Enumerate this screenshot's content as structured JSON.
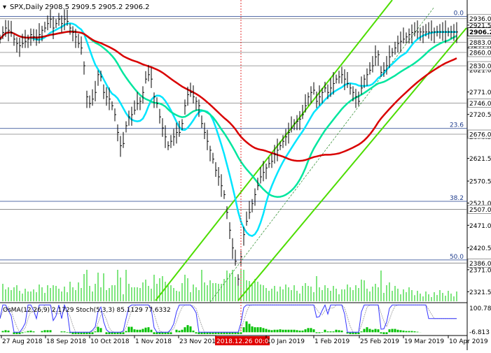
{
  "chart_data": {
    "type": "line",
    "instrument": "SPX,Daily",
    "ohlc_readout": "2908.5 2909.5 2905.2 2906.2",
    "current_price": 2906.2,
    "ylim": [
      2300,
      2956
    ],
    "price_ticks": [
      2921.5,
      2871.0,
      2821.0,
      2771.0,
      2720.5,
      2670.5,
      2621.5,
      2570.5,
      2521.0,
      2471.0,
      2420.5,
      2371.0,
      2321.5
    ],
    "level_labels": [
      2936.0,
      2883.0,
      2860.0,
      2830.0,
      2746.0,
      2676.0,
      2507.0,
      2386.0
    ],
    "fib_levels": [
      {
        "label": "0.0",
        "value": 2941
      },
      {
        "label": "23.6",
        "value": 2689
      },
      {
        "label": "38.2",
        "value": 2525
      },
      {
        "label": "50.0",
        "value": 2393
      }
    ],
    "horizontal_lines": [
      2936.0,
      2883.0,
      2860.0,
      2830.0,
      2746.0,
      2676.0,
      2507.0,
      2386.0
    ],
    "x_labels": [
      "27 Aug 2018",
      "18 Sep 2018",
      "10 Oct 2018",
      "1 Nov 2018",
      "23 Nov 201",
      "2018.12.26 00:00",
      "10 Jan 2019",
      "1 Feb 2019",
      "25 Feb 2019",
      "19 Mar 2019",
      "10 Apr 2019"
    ],
    "highlighted_date": "2018.12.26 00:00",
    "price_series": {
      "x": [
        0,
        4,
        8,
        12,
        16,
        20,
        24,
        28,
        32,
        36,
        40,
        44,
        48,
        52,
        56,
        60,
        64,
        68,
        72,
        76,
        80,
        84,
        88,
        92,
        96,
        100,
        104,
        108,
        112,
        116,
        120,
        124,
        128,
        132,
        136,
        140,
        144,
        148,
        152,
        156,
        160,
        164,
        168,
        172,
        176,
        180,
        184,
        188,
        192,
        196,
        200,
        204,
        208,
        212,
        216,
        220,
        224,
        228,
        232,
        236,
        240,
        244,
        248,
        252,
        256,
        260,
        264,
        268,
        272,
        276,
        280,
        284,
        288,
        292,
        296,
        300,
        304,
        308,
        312,
        316,
        320,
        324,
        328,
        332,
        336,
        340,
        344,
        348,
        352,
        356,
        360,
        364,
        368,
        372,
        376,
        380,
        384,
        388,
        392,
        396,
        400,
        404,
        408,
        412,
        416,
        420,
        424,
        428,
        432,
        436,
        440,
        444,
        448,
        452,
        456,
        460,
        464,
        468,
        472,
        476,
        480,
        484,
        488,
        492,
        496,
        500,
        504,
        508,
        512,
        516,
        520,
        524,
        528,
        532,
        536,
        540,
        544,
        548,
        552,
        556,
        560,
        564,
        568,
        572,
        576,
        580,
        584,
        588,
        592,
        596,
        600,
        604,
        608,
        612,
        616,
        620,
        624,
        628,
        632,
        636,
        640,
        644,
        648,
        652
      ],
      "values": [
        2890,
        2905,
        2915,
        2910,
        2905,
        2890,
        2880,
        2875,
        2880,
        2885,
        2890,
        2900,
        2895,
        2890,
        2900,
        2910,
        2915,
        2925,
        2935,
        2915,
        2925,
        2935,
        2925,
        2935,
        2930,
        2915,
        2905,
        2895,
        2880,
        2870,
        2830,
        2760,
        2745,
        2755,
        2770,
        2810,
        2805,
        2770,
        2760,
        2755,
        2740,
        2720,
        2680,
        2650,
        2655,
        2695,
        2715,
        2720,
        2730,
        2745,
        2750,
        2770,
        2800,
        2810,
        2800,
        2760,
        2745,
        2715,
        2690,
        2670,
        2650,
        2660,
        2670,
        2680,
        2680,
        2700,
        2740,
        2765,
        2770,
        2760,
        2750,
        2740,
        2700,
        2680,
        2660,
        2640,
        2620,
        2595,
        2580,
        2560,
        2540,
        2500,
        2460,
        2420,
        2390,
        2350,
        2400,
        2450,
        2480,
        2500,
        2520,
        2540,
        2560,
        2580,
        2590,
        2600,
        2610,
        2615,
        2630,
        2640,
        2650,
        2660,
        2670,
        2680,
        2690,
        2700,
        2705,
        2710,
        2720,
        2740,
        2760,
        2770,
        2775,
        2750,
        2760,
        2770,
        2780,
        2770,
        2780,
        2790,
        2800,
        2805,
        2810,
        2800,
        2790,
        2780,
        2770,
        2760,
        2750,
        2780,
        2800,
        2810,
        2820,
        2830,
        2850,
        2855,
        2815,
        2820,
        2830,
        2850,
        2860,
        2870,
        2880,
        2885,
        2890,
        2895,
        2900,
        2905,
        2906,
        2906,
        2906,
        2906,
        2906,
        2906,
        2906,
        2906,
        2906,
        2906,
        2906,
        2906,
        2906,
        2906,
        2906,
        2906
      ]
    },
    "indicators": [
      {
        "name": "OsMA(12,26,9)",
        "value_text": "2.1729"
      },
      {
        "name": "Stoch(5,3,3)",
        "value_text": "85.1129 77.6332"
      }
    ],
    "indicator_scale": {
      "top": 100.78,
      "bottom": -6.813
    },
    "colors": {
      "price": "#000000",
      "ma_fast": "#00e5ff",
      "ma_mid": "#00e69e",
      "ma_slow": "#d90000",
      "channel": "#4ddd00",
      "level": "#808080",
      "fib": "#1e3c8c",
      "highlight": "#e00000",
      "volume": "#00cc00",
      "stoch_main": "#3333ff",
      "stoch_signal": "#aaaaaa",
      "osma": "#00c000"
    }
  }
}
